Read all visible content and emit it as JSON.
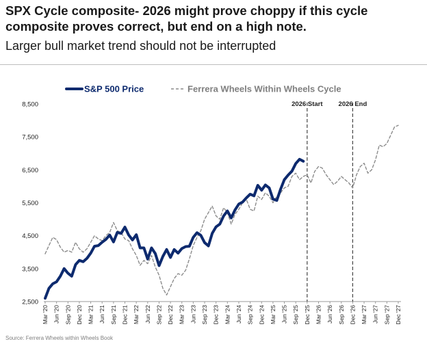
{
  "header": {
    "title_line1": "SPX Cycle composite- 2026 might prove choppy if this cycle",
    "title_line2": "composite proves correct, but end on a high note.",
    "subtitle": "Larger bull market trend should not be interrupted"
  },
  "source": "Source: Ferrera Wheels within Wheels Book",
  "chart_data": {
    "type": "line",
    "title": "",
    "xlabel": "",
    "ylabel": "",
    "ylim": [
      2500,
      8500
    ],
    "y_ticks": [
      2500,
      3500,
      4500,
      5500,
      6500,
      7500,
      8500
    ],
    "y_tick_labels": [
      "2,500",
      "3,500",
      "4,500",
      "5,500",
      "6,500",
      "7,500",
      "8,500"
    ],
    "x_range": [
      "2020-03",
      "2027-12"
    ],
    "x_tick_labels": [
      "Mar '20",
      "Jun '20",
      "Sep '20",
      "Dec '20",
      "Mar '21",
      "Jun '21",
      "Sep '21",
      "Dec '21",
      "Mar '22",
      "Jun '22",
      "Sep '22",
      "Dec '22",
      "Mar '23",
      "Jun '23",
      "Sep '23",
      "Dec '23",
      "Mar '24",
      "Jun '24",
      "Sep '24",
      "Dec '24",
      "Mar '25",
      "Jun '25",
      "Sep '25",
      "Dec '25",
      "Mar '26",
      "Jun '26",
      "Sep '26",
      "Dec '26",
      "Mar '27",
      "Jun '27",
      "Sep '27",
      "Dec '27"
    ],
    "grid": false,
    "legend_position": "top",
    "annotations": [
      {
        "label": "2026 Start",
        "x": "2025-12"
      },
      {
        "label": "2026 End",
        "x": "2026-12"
      }
    ],
    "series": [
      {
        "name": "S&P 500 Price",
        "color": "#0d2a6e",
        "style": "solid",
        "points": [
          [
            "2020-03",
            2600
          ],
          [
            "2020-04",
            2900
          ],
          [
            "2020-05",
            3040
          ],
          [
            "2020-06",
            3100
          ],
          [
            "2020-07",
            3270
          ],
          [
            "2020-08",
            3500
          ],
          [
            "2020-09",
            3360
          ],
          [
            "2020-10",
            3270
          ],
          [
            "2020-11",
            3620
          ],
          [
            "2020-12",
            3750
          ],
          [
            "2021-01",
            3710
          ],
          [
            "2021-02",
            3810
          ],
          [
            "2021-03",
            3970
          ],
          [
            "2021-04",
            4180
          ],
          [
            "2021-05",
            4200
          ],
          [
            "2021-06",
            4300
          ],
          [
            "2021-07",
            4390
          ],
          [
            "2021-08",
            4520
          ],
          [
            "2021-09",
            4310
          ],
          [
            "2021-10",
            4600
          ],
          [
            "2021-11",
            4570
          ],
          [
            "2021-12",
            4760
          ],
          [
            "2022-01",
            4520
          ],
          [
            "2022-02",
            4370
          ],
          [
            "2022-03",
            4530
          ],
          [
            "2022-04",
            4130
          ],
          [
            "2022-05",
            4130
          ],
          [
            "2022-06",
            3790
          ],
          [
            "2022-07",
            4130
          ],
          [
            "2022-08",
            3960
          ],
          [
            "2022-09",
            3590
          ],
          [
            "2022-10",
            3870
          ],
          [
            "2022-11",
            4080
          ],
          [
            "2022-12",
            3840
          ],
          [
            "2023-01",
            4080
          ],
          [
            "2023-02",
            3970
          ],
          [
            "2023-03",
            4110
          ],
          [
            "2023-04",
            4170
          ],
          [
            "2023-05",
            4180
          ],
          [
            "2023-06",
            4450
          ],
          [
            "2023-07",
            4590
          ],
          [
            "2023-08",
            4510
          ],
          [
            "2023-09",
            4290
          ],
          [
            "2023-10",
            4190
          ],
          [
            "2023-11",
            4570
          ],
          [
            "2023-12",
            4770
          ],
          [
            "2024-01",
            4850
          ],
          [
            "2024-02",
            5100
          ],
          [
            "2024-03",
            5250
          ],
          [
            "2024-04",
            5040
          ],
          [
            "2024-05",
            5280
          ],
          [
            "2024-06",
            5460
          ],
          [
            "2024-07",
            5520
          ],
          [
            "2024-08",
            5650
          ],
          [
            "2024-09",
            5760
          ],
          [
            "2024-10",
            5710
          ],
          [
            "2024-11",
            6030
          ],
          [
            "2024-12",
            5880
          ],
          [
            "2025-01",
            6040
          ],
          [
            "2025-02",
            5950
          ],
          [
            "2025-03",
            5610
          ],
          [
            "2025-04",
            5570
          ],
          [
            "2025-05",
            5910
          ],
          [
            "2025-06",
            6200
          ],
          [
            "2025-07",
            6340
          ],
          [
            "2025-08",
            6460
          ],
          [
            "2025-09",
            6690
          ],
          [
            "2025-10",
            6820
          ],
          [
            "2025-11",
            6760
          ]
        ]
      },
      {
        "name": "Ferrera Wheels Within Wheels Cycle",
        "color": "#8c8c8c",
        "style": "dashed",
        "points": [
          [
            "2020-03",
            3950
          ],
          [
            "2020-04",
            4200
          ],
          [
            "2020-05",
            4450
          ],
          [
            "2020-06",
            4380
          ],
          [
            "2020-07",
            4150
          ],
          [
            "2020-08",
            4000
          ],
          [
            "2020-09",
            4050
          ],
          [
            "2020-10",
            4000
          ],
          [
            "2020-11",
            4300
          ],
          [
            "2020-12",
            4100
          ],
          [
            "2021-01",
            4000
          ],
          [
            "2021-02",
            4100
          ],
          [
            "2021-03",
            4300
          ],
          [
            "2021-04",
            4500
          ],
          [
            "2021-05",
            4400
          ],
          [
            "2021-06",
            4350
          ],
          [
            "2021-07",
            4500
          ],
          [
            "2021-08",
            4600
          ],
          [
            "2021-09",
            4900
          ],
          [
            "2021-10",
            4650
          ],
          [
            "2021-11",
            4600
          ],
          [
            "2021-12",
            4400
          ],
          [
            "2022-01",
            4350
          ],
          [
            "2022-02",
            4100
          ],
          [
            "2022-03",
            3900
          ],
          [
            "2022-04",
            3600
          ],
          [
            "2022-05",
            3750
          ],
          [
            "2022-06",
            3650
          ],
          [
            "2022-07",
            3900
          ],
          [
            "2022-08",
            3550
          ],
          [
            "2022-09",
            3300
          ],
          [
            "2022-10",
            2900
          ],
          [
            "2022-11",
            2700
          ],
          [
            "2022-12",
            2950
          ],
          [
            "2023-01",
            3200
          ],
          [
            "2023-02",
            3350
          ],
          [
            "2023-03",
            3300
          ],
          [
            "2023-04",
            3450
          ],
          [
            "2023-05",
            3800
          ],
          [
            "2023-06",
            4200
          ],
          [
            "2023-07",
            4450
          ],
          [
            "2023-08",
            4650
          ],
          [
            "2023-09",
            5000
          ],
          [
            "2023-10",
            5200
          ],
          [
            "2023-11",
            5400
          ],
          [
            "2023-12",
            5100
          ],
          [
            "2024-01",
            5000
          ],
          [
            "2024-02",
            5350
          ],
          [
            "2024-03",
            5200
          ],
          [
            "2024-04",
            4850
          ],
          [
            "2024-05",
            5150
          ],
          [
            "2024-06",
            5300
          ],
          [
            "2024-07",
            5500
          ],
          [
            "2024-08",
            5600
          ],
          [
            "2024-09",
            5300
          ],
          [
            "2024-10",
            5250
          ],
          [
            "2024-11",
            5700
          ],
          [
            "2024-12",
            5600
          ],
          [
            "2025-01",
            5800
          ],
          [
            "2025-02",
            5700
          ],
          [
            "2025-03",
            5500
          ],
          [
            "2025-04",
            5700
          ],
          [
            "2025-05",
            5800
          ],
          [
            "2025-06",
            5950
          ],
          [
            "2025-07",
            6000
          ],
          [
            "2025-08",
            6300
          ],
          [
            "2025-09",
            6400
          ],
          [
            "2025-10",
            6200
          ],
          [
            "2025-11",
            6300
          ],
          [
            "2025-12",
            6350
          ],
          [
            "2026-01",
            6100
          ],
          [
            "2026-02",
            6450
          ],
          [
            "2026-03",
            6600
          ],
          [
            "2026-04",
            6550
          ],
          [
            "2026-05",
            6350
          ],
          [
            "2026-06",
            6200
          ],
          [
            "2026-07",
            6050
          ],
          [
            "2026-08",
            6150
          ],
          [
            "2026-09",
            6300
          ],
          [
            "2026-10",
            6200
          ],
          [
            "2026-11",
            6100
          ],
          [
            "2026-12",
            5950
          ],
          [
            "2027-01",
            6350
          ],
          [
            "2027-02",
            6600
          ],
          [
            "2027-03",
            6700
          ],
          [
            "2027-04",
            6400
          ],
          [
            "2027-05",
            6500
          ],
          [
            "2027-06",
            6800
          ],
          [
            "2027-07",
            7250
          ],
          [
            "2027-08",
            7200
          ],
          [
            "2027-09",
            7300
          ],
          [
            "2027-10",
            7550
          ],
          [
            "2027-11",
            7800
          ],
          [
            "2027-12",
            7850
          ]
        ]
      }
    ]
  }
}
